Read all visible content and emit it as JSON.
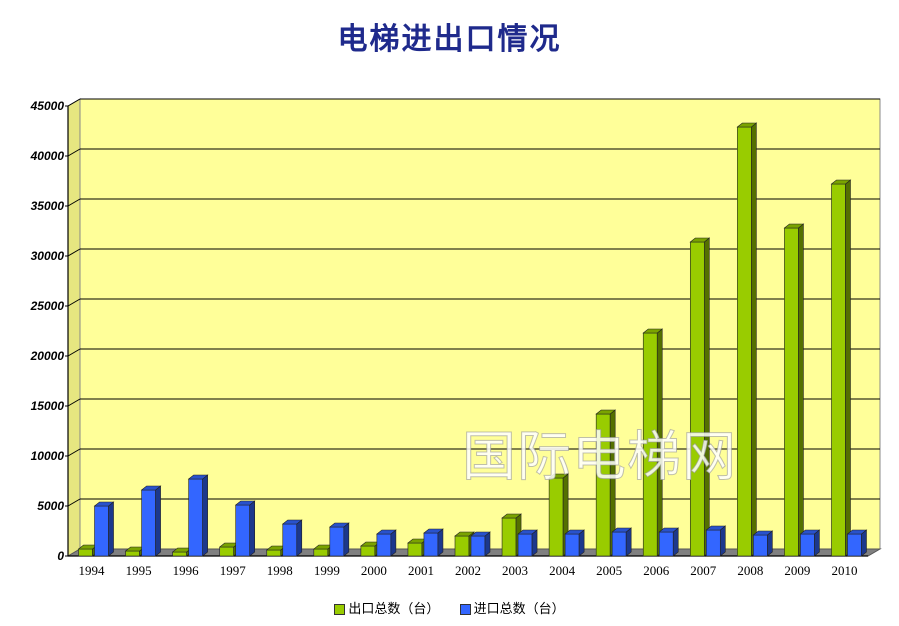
{
  "chart_data": {
    "type": "bar",
    "title": "电梯进出口情况",
    "categories": [
      "1994",
      "1995",
      "1996",
      "1997",
      "1998",
      "1999",
      "2000",
      "2001",
      "2002",
      "2003",
      "2004",
      "2005",
      "2006",
      "2007",
      "2008",
      "2009",
      "2010"
    ],
    "series": [
      {
        "name": "出口总数（台）",
        "color": "#99cc00",
        "values": [
          700,
          500,
          400,
          900,
          600,
          700,
          1000,
          1300,
          2000,
          3800,
          7800,
          14200,
          22300,
          31400,
          42900,
          32800,
          37200
        ]
      },
      {
        "name": "进口总数（台）",
        "color": "#3366ff",
        "values": [
          5000,
          6600,
          7700,
          5100,
          3200,
          2900,
          2200,
          2300,
          2000,
          2200,
          2200,
          2400,
          2400,
          2600,
          2100,
          2200,
          2200
        ]
      }
    ],
    "yticks": [
      "0",
      "5000",
      "10000",
      "15000",
      "20000",
      "25000",
      "30000",
      "35000",
      "40000",
      "45000"
    ],
    "ylim": [
      0,
      45000
    ],
    "grid": true,
    "legend_position": "bottom",
    "plot_background": "#ffff99"
  },
  "watermark": "国际电梯网"
}
